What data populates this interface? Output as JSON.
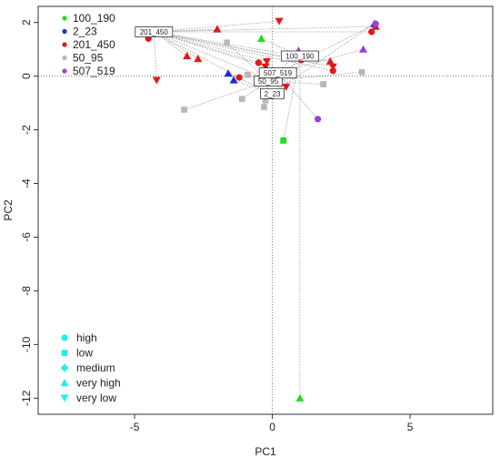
{
  "chart_data": {
    "type": "scatter",
    "title": "",
    "xlabel": "PC1",
    "ylabel": "PC2",
    "xlim": [
      -8.5,
      8.0
    ],
    "ylim": [
      -12.6,
      2.6
    ],
    "x_ticks": [
      -5,
      0,
      5
    ],
    "y_ticks": [
      2,
      0,
      -2,
      -4,
      -6,
      -8,
      -10,
      -12
    ],
    "reference_lines": {
      "x": 0,
      "y": 0,
      "style": "dotted"
    },
    "group_legend": {
      "position": "top-left",
      "entries": [
        {
          "label": "100_190",
          "color": "#22dd22"
        },
        {
          "label": "2_23",
          "color": "#1a2ecc"
        },
        {
          "label": "201_450",
          "color": "#e01818"
        },
        {
          "label": "50_95",
          "color": "#b8b8b8"
        },
        {
          "label": "507_519",
          "color": "#9c3fe0"
        }
      ]
    },
    "shape_legend": {
      "position": "bottom-left",
      "color": "#22eeee",
      "entries": [
        {
          "label": "high",
          "shape": "circle"
        },
        {
          "label": "low",
          "shape": "square"
        },
        {
          "label": "medium",
          "shape": "diamond"
        },
        {
          "label": "very high",
          "shape": "triangle-up"
        },
        {
          "label": "very low",
          "shape": "triangle-down"
        }
      ]
    },
    "centroids": [
      {
        "group": "100_190",
        "label": "100_190",
        "x": 1.0,
        "y": 0.75
      },
      {
        "group": "2_23",
        "label": "2_23",
        "x": 0.0,
        "y": -0.65
      },
      {
        "group": "201_450",
        "label": "201_450",
        "x": -4.3,
        "y": 1.65
      },
      {
        "group": "50_95",
        "label": "50_95",
        "x": -0.15,
        "y": -0.18
      },
      {
        "group": "507_519",
        "label": "507_519",
        "x": 0.2,
        "y": 0.12
      }
    ],
    "points": [
      {
        "group": "100_190",
        "shape": "triangle-up",
        "x": -0.4,
        "y": 1.4
      },
      {
        "group": "100_190",
        "shape": "square",
        "x": 0.4,
        "y": -2.4
      },
      {
        "group": "100_190",
        "shape": "triangle-up",
        "x": 1.0,
        "y": -12.0
      },
      {
        "group": "100_190",
        "shape": "circle",
        "x": 0.0,
        "y": -0.75
      },
      {
        "group": "2_23",
        "shape": "triangle-up",
        "x": -1.6,
        "y": 0.1
      },
      {
        "group": "2_23",
        "shape": "triangle-up",
        "x": -1.4,
        "y": -0.15
      },
      {
        "group": "2_23",
        "shape": "triangle-up",
        "x": 3.7,
        "y": 1.95
      },
      {
        "group": "201_450",
        "shape": "circle",
        "x": -4.5,
        "y": 1.4
      },
      {
        "group": "201_450",
        "shape": "triangle-down",
        "x": -4.2,
        "y": -0.15
      },
      {
        "group": "201_450",
        "shape": "triangle-up",
        "x": -3.1,
        "y": 0.75
      },
      {
        "group": "201_450",
        "shape": "triangle-up",
        "x": -2.7,
        "y": 0.65
      },
      {
        "group": "201_450",
        "shape": "triangle-up",
        "x": -2.0,
        "y": 1.75
      },
      {
        "group": "201_450",
        "shape": "circle",
        "x": -1.2,
        "y": -0.05
      },
      {
        "group": "201_450",
        "shape": "circle",
        "x": -0.5,
        "y": 0.5
      },
      {
        "group": "201_450",
        "shape": "triangle-down",
        "x": -0.2,
        "y": 0.55
      },
      {
        "group": "201_450",
        "shape": "triangle-down",
        "x": -0.25,
        "y": 0.35
      },
      {
        "group": "201_450",
        "shape": "triangle-down",
        "x": 0.25,
        "y": 2.05
      },
      {
        "group": "201_450",
        "shape": "triangle-down",
        "x": 0.5,
        "y": -0.4
      },
      {
        "group": "201_450",
        "shape": "circle",
        "x": 1.05,
        "y": 0.6
      },
      {
        "group": "201_450",
        "shape": "triangle-up",
        "x": 2.1,
        "y": 0.55
      },
      {
        "group": "201_450",
        "shape": "circle",
        "x": 2.2,
        "y": 0.2
      },
      {
        "group": "201_450",
        "shape": "triangle-down",
        "x": 2.2,
        "y": 0.35
      },
      {
        "group": "201_450",
        "shape": "circle",
        "x": 3.6,
        "y": 1.65
      },
      {
        "group": "201_450",
        "shape": "triangle-up",
        "x": 3.75,
        "y": 1.85
      },
      {
        "group": "50_95",
        "shape": "square",
        "x": -3.2,
        "y": -1.25
      },
      {
        "group": "50_95",
        "shape": "square",
        "x": -1.65,
        "y": 1.25
      },
      {
        "group": "50_95",
        "shape": "square",
        "x": -1.1,
        "y": -0.85
      },
      {
        "group": "50_95",
        "shape": "square",
        "x": -0.9,
        "y": 0.05
      },
      {
        "group": "50_95",
        "shape": "square",
        "x": -0.3,
        "y": -1.15
      },
      {
        "group": "50_95",
        "shape": "square",
        "x": -0.25,
        "y": -0.9
      },
      {
        "group": "50_95",
        "shape": "square",
        "x": 1.85,
        "y": -0.3
      },
      {
        "group": "50_95",
        "shape": "square",
        "x": 3.25,
        "y": 0.15
      },
      {
        "group": "507_519",
        "shape": "triangle-up",
        "x": 0.95,
        "y": 0.95
      },
      {
        "group": "507_519",
        "shape": "circle",
        "x": 1.65,
        "y": -1.6
      },
      {
        "group": "507_519",
        "shape": "triangle-up",
        "x": 3.3,
        "y": 1.0
      },
      {
        "group": "507_519",
        "shape": "circle",
        "x": 3.75,
        "y": 1.95
      }
    ]
  }
}
